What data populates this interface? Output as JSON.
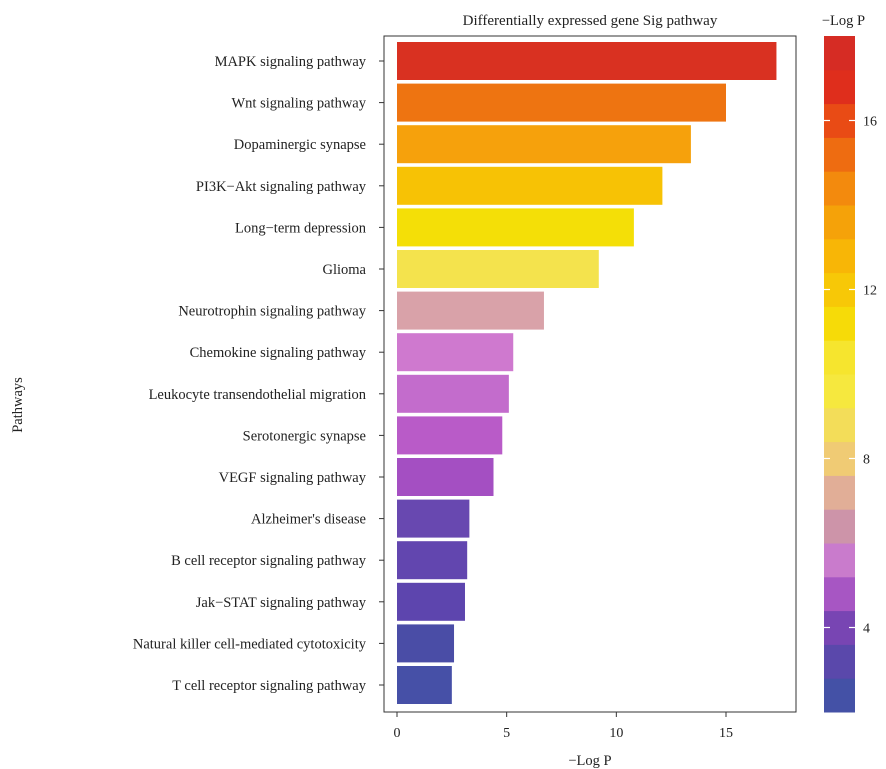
{
  "chart_data": {
    "type": "bar",
    "orientation": "horizontal",
    "title": "Differentially expressed gene Sig pathway",
    "xlabel": "−Log P",
    "ylabel": "Pathways",
    "xlim": [
      -0.6,
      18.2
    ],
    "xticks": [
      0,
      5,
      10,
      15
    ],
    "grid": false,
    "categories": [
      "MAPK signaling pathway",
      "Wnt signaling pathway",
      "Dopaminergic synapse",
      "PI3K−Akt signaling pathway",
      "Long−term depression",
      "Glioma",
      "Neurotrophin signaling pathway",
      "Chemokine signaling pathway",
      "Leukocyte transendothelial migration",
      "Serotonergic synapse",
      "VEGF signaling pathway",
      "Alzheimer's disease",
      "B cell receptor signaling pathway",
      "Jak−STAT signaling pathway",
      "Natural killer cell-mediated cytotoxicity",
      "T cell receptor signaling pathway"
    ],
    "values": [
      17.3,
      15.0,
      13.4,
      12.1,
      10.8,
      9.2,
      6.7,
      5.3,
      5.1,
      4.8,
      4.4,
      3.3,
      3.2,
      3.1,
      2.6,
      2.5
    ],
    "bar_colors": [
      "#d93121",
      "#ee7411",
      "#f6a10c",
      "#f7c205",
      "#f4df07",
      "#f4e34d",
      "#d9a2a9",
      "#cf79cf",
      "#c36ccc",
      "#b95bc8",
      "#a44fc2",
      "#6848b0",
      "#6246af",
      "#5d45ae",
      "#4a4da6",
      "#4650a7"
    ],
    "colorbar": {
      "title": "−Log P",
      "ticks": [
        "4",
        "8",
        "12",
        "16"
      ],
      "tick_values": [
        4,
        8,
        12,
        16
      ],
      "range": [
        2.0,
        18.0
      ],
      "colors": [
        "#4451a6",
        "#5a48ab",
        "#7845b3",
        "#a756c3",
        "#c97bcc",
        "#cd94a9",
        "#e1ae97",
        "#f0cb74",
        "#f3dd59",
        "#f6e83e",
        "#f6e52e",
        "#f6db08",
        "#f7c807",
        "#f8b606",
        "#f5a209",
        "#f38a0d",
        "#ee6c11",
        "#e94b15",
        "#df2e1c",
        "#d62c24"
      ]
    }
  }
}
